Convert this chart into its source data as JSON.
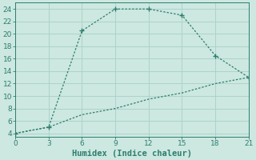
{
  "xlabel": "Humidex (Indice chaleur)",
  "line1_x": [
    0,
    3,
    6,
    9,
    12,
    15,
    18,
    21
  ],
  "line1_y": [
    4,
    5,
    20.5,
    24,
    24,
    23,
    16.5,
    13
  ],
  "line2_x": [
    0,
    3,
    6,
    9,
    12,
    15,
    18,
    21
  ],
  "line2_y": [
    4,
    5,
    7,
    8,
    9.5,
    10.5,
    12,
    13
  ],
  "line_color": "#2e7d6e",
  "bg_color": "#cce8e0",
  "grid_color": "#aacfc6",
  "xlim": [
    0,
    21
  ],
  "ylim": [
    3.5,
    25
  ],
  "xticks": [
    0,
    3,
    6,
    9,
    12,
    15,
    18,
    21
  ],
  "yticks": [
    4,
    6,
    8,
    10,
    12,
    14,
    16,
    18,
    20,
    22,
    24
  ],
  "xlabel_fontsize": 7.5,
  "tick_fontsize": 6.5
}
